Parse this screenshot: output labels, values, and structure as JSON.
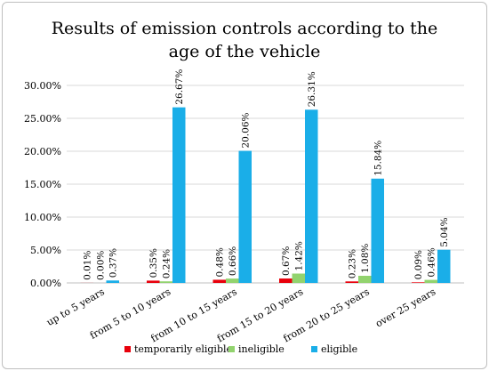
{
  "chart_data": {
    "type": "bar",
    "title_lines": [
      "Results of emission controls according to the",
      "age of the vehicle"
    ],
    "categories": [
      "up to 5 years",
      "from 5 to 10 years",
      "from 10 to 15 years",
      "from 15 to 20 years",
      "from 20 to 25 years",
      "over 25 years"
    ],
    "series": [
      {
        "name": "temporarily eligible",
        "color": "#e8000b",
        "values": [
          0.01,
          0.35,
          0.48,
          0.67,
          0.23,
          0.09
        ],
        "labels": [
          "0.01%",
          "0.35%",
          "0.48%",
          "0.67%",
          "0.23%",
          "0.09%"
        ]
      },
      {
        "name": "ineligible",
        "color": "#92d36e",
        "values": [
          0.0,
          0.24,
          0.66,
          1.42,
          1.08,
          0.46
        ],
        "labels": [
          "0.00%",
          "0.24%",
          "0.66%",
          "1.42%",
          "1.08%",
          "0.46%"
        ]
      },
      {
        "name": "eligible",
        "color": "#1aaee8",
        "values": [
          0.37,
          26.67,
          20.06,
          26.31,
          15.84,
          5.04
        ],
        "labels": [
          "0.37%",
          "26.67%",
          "20.06%",
          "26.31%",
          "15.84%",
          "5.04%"
        ]
      }
    ],
    "yticks": [
      0,
      5,
      10,
      15,
      20,
      25,
      30
    ],
    "ytick_labels": [
      "0.00%",
      "5.00%",
      "10.00%",
      "15.00%",
      "20.00%",
      "25.00%",
      "30.00%"
    ],
    "ylim": [
      0,
      30
    ],
    "grid": true,
    "legend_position": "bottom"
  }
}
